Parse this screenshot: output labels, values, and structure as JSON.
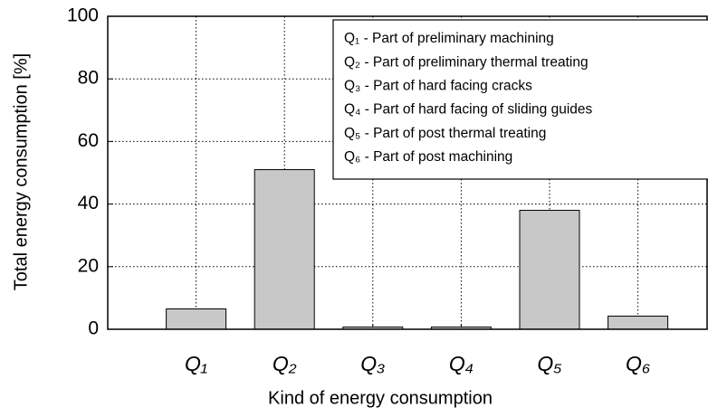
{
  "chart_data": {
    "type": "bar",
    "x_label": "Kind of energy consumption",
    "y_label": "Total energy consumption [%]",
    "categories": [
      "Q₁",
      "Q₂",
      "Q₃",
      "Q₄",
      "Q₅",
      "Q₆"
    ],
    "values": [
      6.5,
      51,
      0.7,
      0.7,
      38,
      4.2
    ],
    "color": "#c8c8c8",
    "ylim": [
      0,
      100
    ],
    "yticks": [
      0,
      20,
      40,
      60,
      80,
      100
    ],
    "grid": true,
    "legend_entries": [
      "Q₁ - Part of preliminary machining",
      "Q₂ - Part of preliminary thermal treating",
      "Q₃ - Part of hard facing cracks",
      "Q₄ - Part of hard facing of sliding guides",
      "Q₅ - Part of post thermal treating",
      "Q₆ - Part of post machining"
    ]
  }
}
